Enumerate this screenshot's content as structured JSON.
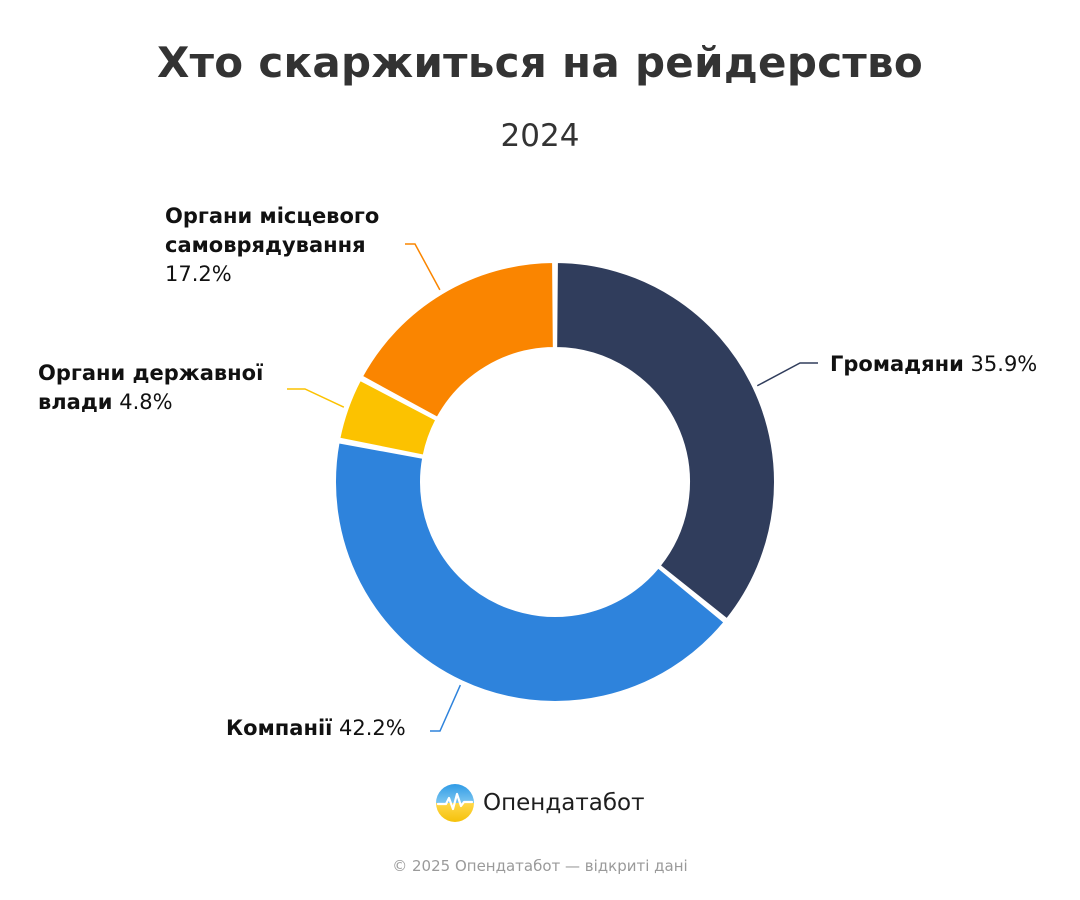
{
  "title": "Хто скаржиться на рейдерство",
  "subtitle": "2024",
  "chart_data": {
    "type": "pie",
    "style": "donut",
    "title": "Хто скаржиться на рейдерство",
    "subtitle": "2024",
    "series": [
      {
        "name": "Громадяни",
        "value": 35.9,
        "value_label": "35.9%",
        "color": "#303d5c"
      },
      {
        "name": "Компанії",
        "value": 42.2,
        "value_label": "42.2%",
        "color": "#2e83dc"
      },
      {
        "name": "Органи державної влади",
        "value": 4.8,
        "value_label": "4.8%",
        "color": "#fcc200"
      },
      {
        "name": "Органи місцевого самоврядування",
        "value": 17.2,
        "value_label": "17.2%",
        "color": "#fa8500"
      }
    ],
    "labels": [
      {
        "line1": "Громадяни",
        "value": "35.9%"
      },
      {
        "line1": "Компанії",
        "value": "42.2%"
      },
      {
        "line1": "Органи державної",
        "line2": "влади",
        "value": "4.8%"
      },
      {
        "line1": "Органи місцевого",
        "line2": "самоврядування",
        "value": "17.2%"
      }
    ]
  },
  "logo": {
    "text": "Опендатабот",
    "icon": "opendatabot-logo-icon"
  },
  "footer": "© 2025 Опендатабот — відкриті дані"
}
